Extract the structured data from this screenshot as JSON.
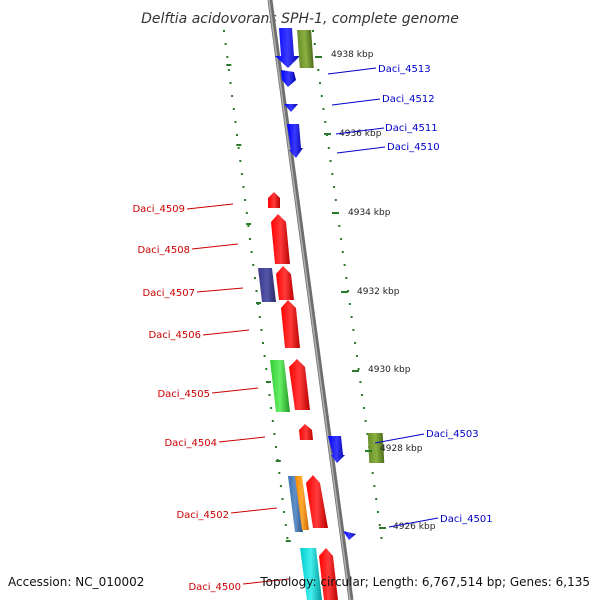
{
  "title": "Delftia acidovorans SPH-1, complete genome",
  "footer": {
    "accession": "Accession: NC_010002",
    "topology": "Topology: circular; Length: 6,767,514 bp; Genes: 6,135"
  },
  "colors": {
    "reverse_label": "#cc0000",
    "forward_label": "#0000cc",
    "tick": "#2a7a2a",
    "backbone": "#808080"
  },
  "kbp_labels": [
    "4938 kbp",
    "4936 kbp",
    "4934 kbp",
    "4932 kbp",
    "4930 kbp",
    "4928 kbp",
    "4926 kbp"
  ],
  "genes_left": [
    "Daci_4509",
    "Daci_4508",
    "Daci_4507",
    "Daci_4506",
    "Daci_4505",
    "Daci_4504",
    "Daci_4502",
    "Daci_4500"
  ],
  "genes_right": [
    "Daci_4513",
    "Daci_4512",
    "Daci_4511",
    "Daci_4510",
    "Daci_4503",
    "Daci_4501"
  ]
}
